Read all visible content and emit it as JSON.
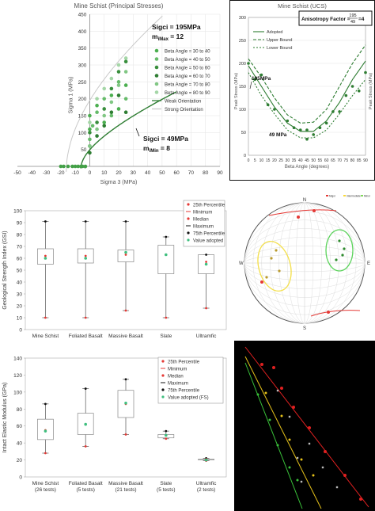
{
  "chart_data": [
    {
      "id": "principal",
      "type": "scatter",
      "title": "Mine Schist (Principal Stresses)",
      "xlabel": "Sigma 3 (MPa)",
      "ylabel": "Sigma 1 (MPa)",
      "xlim": [
        -50,
        90
      ],
      "ylim": [
        0,
        450
      ],
      "x_ticks": [
        -50,
        -40,
        -30,
        -20,
        -10,
        0,
        10,
        20,
        30,
        40,
        50,
        60,
        70,
        80,
        90
      ],
      "y_ticks": [
        0,
        50,
        100,
        150,
        200,
        250,
        300,
        350,
        400,
        450
      ],
      "legend": [
        "Beta Angle = 30 to 40",
        "Beta Angle = 40 to 50",
        "Beta Angle = 50 to 60",
        "Beta Angle = 60 to 70",
        "Beta Angle = 70 to 80",
        "Beta Angle = 80 to 90",
        "Weak Orientation",
        "Strong Orientation"
      ],
      "annotations": {
        "sigci_high": "Sigci = 195MPa",
        "mmax_prefix": "m",
        "mmax_sub": "iMax",
        "mmax_value": " = 12",
        "sigci_low": "Sigci = 49MPa",
        "mmin_prefix": "m",
        "mmin_sub": "iMin",
        "mmin_value": " = 8"
      },
      "series_points": [
        {
          "name": "Beta Angle = 30 to 40",
          "points": [
            [
              0,
              110
            ],
            [
              0,
              150
            ],
            [
              5,
              180
            ],
            [
              10,
              130
            ],
            [
              15,
              210
            ],
            [
              20,
              170
            ],
            [
              25,
              240
            ]
          ]
        },
        {
          "name": "Beta Angle = 40 to 50",
          "points": [
            [
              0,
              80
            ],
            [
              2,
              120
            ],
            [
              5,
              160
            ],
            [
              10,
              200
            ],
            [
              15,
              150
            ],
            [
              20,
              250
            ],
            [
              25,
              200
            ]
          ]
        },
        {
          "name": "Beta Angle = 50 to 60",
          "points": [
            [
              0,
              60
            ],
            [
              0,
              100
            ],
            [
              5,
              130
            ],
            [
              10,
              170
            ],
            [
              15,
              230
            ],
            [
              20,
              280
            ],
            [
              25,
              310
            ]
          ]
        },
        {
          "name": "Beta Angle = 60 to 70",
          "points": [
            [
              0,
              40
            ],
            [
              5,
              90
            ],
            [
              10,
              120
            ],
            [
              15,
              160
            ],
            [
              20,
              210
            ],
            [
              25,
              160
            ]
          ]
        },
        {
          "name": "Beta Angle = 70 to 80",
          "points": [
            [
              0,
              60
            ],
            [
              5,
              110
            ],
            [
              10,
              150
            ],
            [
              15,
              190
            ],
            [
              20,
              240
            ],
            [
              25,
              280
            ]
          ]
        },
        {
          "name": "Beta Angle = 80 to 90",
          "points": [
            [
              0,
              130
            ],
            [
              5,
              200
            ],
            [
              10,
              230
            ],
            [
              15,
              260
            ],
            [
              20,
              300
            ],
            [
              25,
              320
            ]
          ]
        },
        {
          "name": "Tension",
          "points": [
            [
              -20,
              0
            ],
            [
              -18,
              0
            ],
            [
              -15,
              0
            ],
            [
              -12,
              0
            ],
            [
              -10,
              0
            ],
            [
              -8,
              0
            ],
            [
              -6,
              0
            ],
            [
              -3,
              0
            ],
            [
              -5,
              0
            ]
          ]
        }
      ],
      "weak_curve": {
        "sigci": 49,
        "mi": 8
      },
      "strong_curve": {
        "sigci": 195,
        "mi": 12
      }
    },
    {
      "id": "ucs",
      "type": "line",
      "title": "Mine Schist (UCS)",
      "xlabel": "Beta Angle (degrees)",
      "ylabel": "Peak Stress (MPa)",
      "y2label": "Peak Stress (MPa)",
      "xlim": [
        0,
        90
      ],
      "ylim": [
        0,
        300
      ],
      "x_ticks": [
        0,
        5,
        10,
        15,
        20,
        25,
        30,
        35,
        40,
        45,
        50,
        55,
        60,
        65,
        70,
        75,
        80,
        85,
        90
      ],
      "y_ticks": [
        0,
        50,
        100,
        150,
        200,
        250,
        300
      ],
      "legend": [
        "Adopted",
        "Upper Bound",
        "Lower Bound"
      ],
      "anisotropy_label": "Anisotropy Factor =",
      "anisotropy_num": "195",
      "anisotropy_den": "49",
      "anisotropy_result": "=4",
      "label_high": "195MPa",
      "label_low": "49 MPa",
      "x": [
        0,
        10,
        20,
        30,
        40,
        50,
        60,
        70,
        80,
        90
      ],
      "series": [
        {
          "name": "Adopted",
          "values": [
            195,
            150,
            105,
            70,
            52,
            52,
            75,
            115,
            165,
            205
          ]
        },
        {
          "name": "Upper Bound",
          "values": [
            210,
            170,
            125,
            88,
            70,
            72,
            100,
            150,
            200,
            240
          ]
        },
        {
          "name": "Lower Bound",
          "values": [
            180,
            130,
            90,
            55,
            38,
            38,
            55,
            90,
            130,
            165
          ]
        }
      ],
      "points": [
        [
          0,
          200
        ],
        [
          5,
          165
        ],
        [
          10,
          175
        ],
        [
          15,
          110
        ],
        [
          20,
          100
        ],
        [
          30,
          75
        ],
        [
          35,
          60
        ],
        [
          40,
          55
        ],
        [
          45,
          55
        ],
        [
          55,
          60
        ],
        [
          60,
          70
        ],
        [
          65,
          95
        ],
        [
          70,
          95
        ],
        [
          75,
          130
        ],
        [
          80,
          150
        ],
        [
          85,
          140
        ],
        [
          90,
          180
        ],
        [
          45,
          35
        ],
        [
          50,
          45
        ]
      ]
    },
    {
      "id": "gsi",
      "type": "box",
      "xlabel": "",
      "ylabel": "Geological Strength Index (GSI)",
      "ylim": [
        0,
        100
      ],
      "y_ticks": [
        0,
        10,
        20,
        30,
        40,
        50,
        60,
        70,
        80,
        90,
        100
      ],
      "categories": [
        "Mine Schist",
        "Foliated Basalt",
        "Massive Basalt",
        "Slate",
        "Ultramfic"
      ],
      "legend": [
        "25th Percentile",
        "Minimum",
        "Median",
        "Maximum",
        "75th Percentile",
        "Value adopted"
      ],
      "boxes": [
        {
          "min": 10,
          "q1": 55,
          "median": 62,
          "q3": 68,
          "max": 91,
          "adopted": 60
        },
        {
          "min": 10,
          "q1": 56,
          "median": 62,
          "q3": 68,
          "max": 91,
          "adopted": 60
        },
        {
          "min": 16,
          "q1": 57,
          "median": 63,
          "q3": 67,
          "max": 91,
          "adopted": 65
        },
        {
          "min": 10,
          "q1": 47,
          "median": 63,
          "q3": 71,
          "max": 78,
          "adopted": 63
        },
        {
          "min": 18,
          "q1": 47,
          "median": 57,
          "q3": 63,
          "max": 63,
          "adopted": 55
        }
      ]
    },
    {
      "id": "stereonet",
      "type": "stereonet",
      "legend": [
        "Major",
        "Intermediate",
        "Minor"
      ],
      "directions": [
        "N",
        "E",
        "S",
        "W"
      ]
    },
    {
      "id": "modulus",
      "type": "box",
      "ylabel": "Intact Elastic Modulus (GPa)",
      "ylim": [
        0,
        140
      ],
      "y_ticks": [
        0,
        20,
        40,
        60,
        80,
        100,
        120,
        140
      ],
      "categories": [
        "Mine Schist",
        "Foliated Basalt",
        "Massive Basalt",
        "Slate",
        "Ultramfic"
      ],
      "subcategories": [
        "(26 tests)",
        "(5 tests)",
        "(21 tests)",
        "(5 tests)",
        "(2 tests)"
      ],
      "legend": [
        "25th Percentile",
        "Minimum",
        "Median",
        "Maximum",
        "75th Percentile",
        "Value adopted (FS)"
      ],
      "boxes": [
        {
          "min": 28,
          "q1": 44,
          "median": 55,
          "q3": 68,
          "max": 86,
          "adopted": 54
        },
        {
          "min": 36,
          "q1": 50,
          "median": 62,
          "q3": 75,
          "max": 104,
          "adopted": 62
        },
        {
          "min": 50,
          "q1": 70,
          "median": 86,
          "q3": 102,
          "max": 115,
          "adopted": 87
        },
        {
          "min": 45,
          "q1": 46,
          "median": 49,
          "q3": 50,
          "max": 54,
          "adopted": 49
        },
        {
          "min": 19,
          "q1": 20,
          "median": 21,
          "q3": 21,
          "max": 22,
          "adopted": 20
        }
      ]
    },
    {
      "id": "seismic",
      "type": "scatter"
    }
  ]
}
